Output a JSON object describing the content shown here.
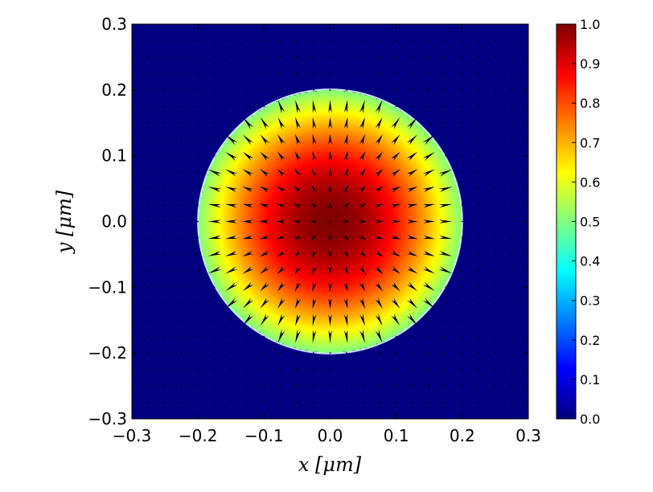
{
  "chart_data": {
    "type": "heatmap",
    "title": "",
    "xlabel": "x [μm]",
    "ylabel": "y [μm]",
    "xlim": [
      -0.3,
      0.3
    ],
    "ylim": [
      -0.3,
      0.3
    ],
    "x_ticks": [
      "−0.3",
      "−0.2",
      "−0.1",
      "0.0",
      "0.1",
      "0.2",
      "0.3"
    ],
    "y_ticks": [
      "−0.3",
      "−0.2",
      "−0.1",
      "0.0",
      "0.1",
      "0.2",
      "0.3"
    ],
    "x_tick_values": [
      -0.3,
      -0.2,
      -0.1,
      0.0,
      0.1,
      0.2,
      0.3
    ],
    "y_tick_values": [
      -0.3,
      -0.2,
      -0.1,
      0.0,
      0.1,
      0.2,
      0.3
    ],
    "colormap": "jet",
    "colorbar": {
      "range": [
        0.0,
        1.0
      ],
      "ticks": [
        "0.0",
        "0.1",
        "0.2",
        "0.3",
        "0.4",
        "0.5",
        "0.6",
        "0.7",
        "0.8",
        "0.9",
        "1.0"
      ],
      "tick_values": [
        0.0,
        0.1,
        0.2,
        0.3,
        0.4,
        0.5,
        0.6,
        0.7,
        0.8,
        0.9,
        1.0
      ]
    },
    "field": {
      "shape": "disk",
      "center": [
        0.0,
        0.0
      ],
      "radius": 0.2,
      "value_center": 1.0,
      "value_edge": 0.5,
      "value_outside": 0.0,
      "boundary_color": "#e8f4ff"
    },
    "vector_field": {
      "direction": "radial-outward",
      "arrow_color": "#000000",
      "spacing": 0.025,
      "inside_radius": 0.2
    },
    "grid": false,
    "legend": "none"
  }
}
